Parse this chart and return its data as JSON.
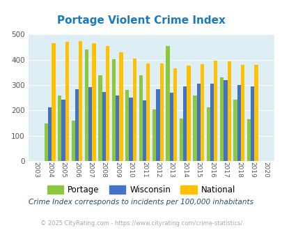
{
  "title": "Portage Violent Crime Index",
  "title_color": "#1a7abf",
  "years": [
    2003,
    2004,
    2005,
    2006,
    2007,
    2008,
    2009,
    2010,
    2011,
    2012,
    2013,
    2014,
    2015,
    2016,
    2017,
    2018,
    2019,
    2020
  ],
  "portage": [
    null,
    150,
    260,
    160,
    440,
    338,
    403,
    280,
    338,
    204,
    455,
    168,
    260,
    213,
    330,
    242,
    165,
    null
  ],
  "wisconsin": [
    null,
    211,
    243,
    284,
    291,
    274,
    260,
    250,
    241,
    284,
    271,
    294,
    307,
    307,
    320,
    300,
    294,
    null
  ],
  "national": [
    null,
    465,
    470,
    473,
    466,
    455,
    431,
    405,
    387,
    387,
    367,
    378,
    383,
    397,
    394,
    380,
    379,
    null
  ],
  "portage_color": "#8dc63f",
  "wisconsin_color": "#4472c4",
  "national_color": "#ffc000",
  "bg_color": "#ddeef5",
  "ylim": [
    0,
    500
  ],
  "yticks": [
    0,
    100,
    200,
    300,
    400,
    500
  ],
  "subtitle": "Crime Index corresponds to incidents per 100,000 inhabitants",
  "footer": "© 2025 CityRating.com - https://www.cityrating.com/crime-statistics/",
  "bar_width": 0.27,
  "legend_labels": [
    "Portage",
    "Wisconsin",
    "National"
  ]
}
